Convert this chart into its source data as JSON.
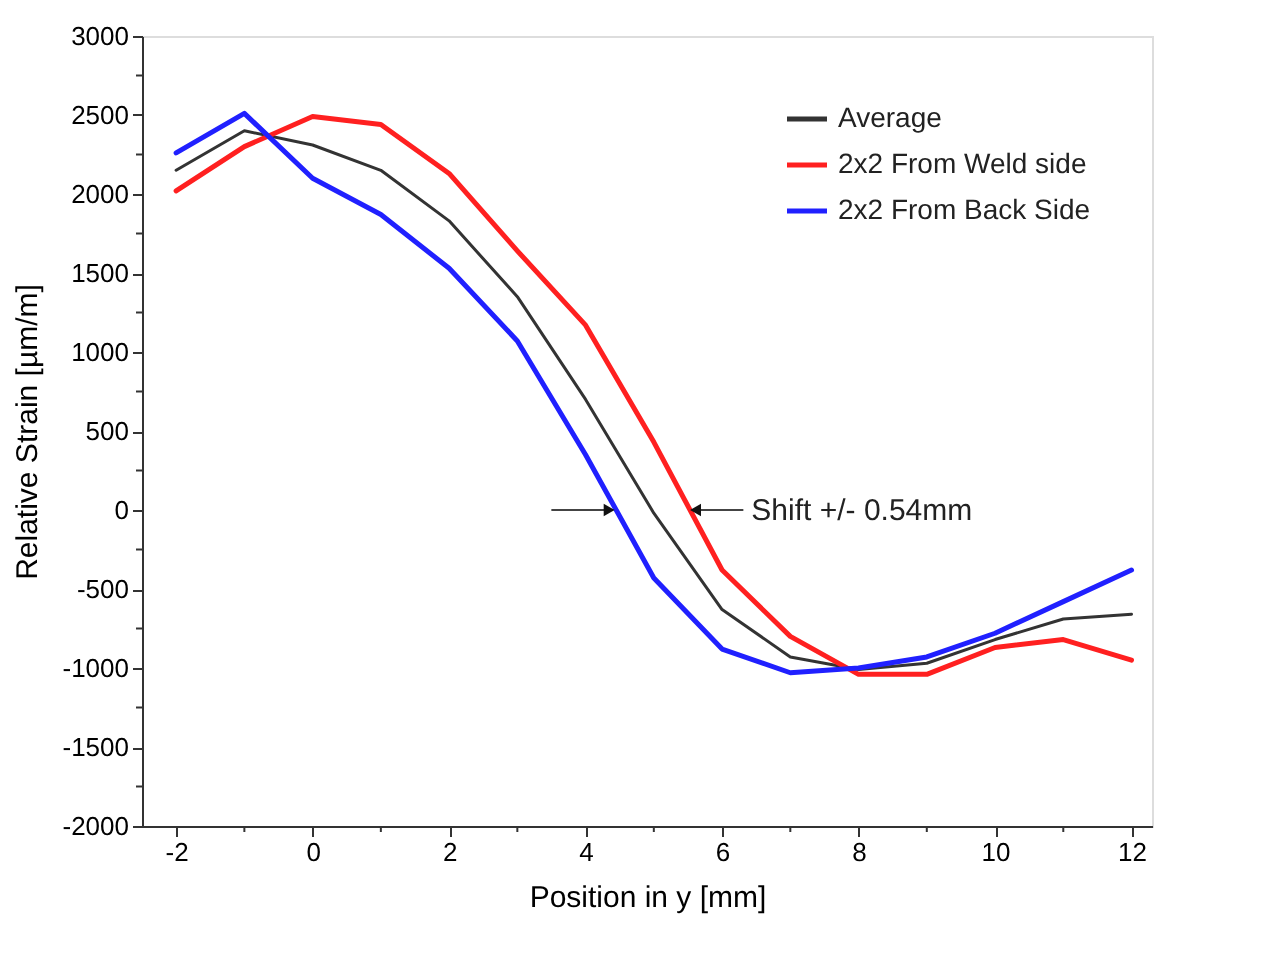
{
  "chart_data": {
    "type": "line",
    "xlabel": "Position in y [mm]",
    "ylabel": "Relative Strain [µm/m]",
    "x": [
      -2,
      -1,
      0,
      1,
      2,
      3,
      4,
      5,
      6,
      7,
      8,
      9,
      10,
      11,
      12
    ],
    "series": [
      {
        "name": "Average",
        "color": "#333333",
        "values": [
          2150,
          2400,
          2310,
          2150,
          1830,
          1350,
          700,
          -20,
          -630,
          -930,
          -1010,
          -970,
          -820,
          -690,
          -660
        ]
      },
      {
        "name": "2x2 From Weld side",
        "color": "#ff2020",
        "values": [
          2020,
          2300,
          2490,
          2440,
          2130,
          1640,
          1170,
          430,
          -380,
          -800,
          -1040,
          -1040,
          -870,
          -820,
          -950
        ]
      },
      {
        "name": "2x2 From Back Side",
        "color": "#2020ff",
        "values": [
          2260,
          2510,
          2100,
          1870,
          1530,
          1070,
          350,
          -430,
          -880,
          -1030,
          -1000,
          -930,
          -780,
          -580,
          -380
        ]
      }
    ],
    "xlim": [
      -2.5,
      12.3
    ],
    "ylim": [
      -2000,
      3000
    ],
    "xticks": [
      -2,
      {
        "value": -1,
        "label": null
      },
      0,
      {
        "value": 1,
        "label": null
      },
      2,
      {
        "value": 3,
        "label": null
      },
      4,
      {
        "value": 5,
        "label": null
      },
      6,
      {
        "value": 7,
        "label": null
      },
      8,
      {
        "value": 9,
        "label": null
      },
      10,
      {
        "value": 11,
        "label": null
      },
      12
    ],
    "yticks": [
      -2000,
      {
        "value": -1750,
        "label": null
      },
      -1500,
      {
        "value": -1250,
        "label": null
      },
      -1000,
      {
        "value": -750,
        "label": null
      },
      -500,
      {
        "value": -250,
        "label": null
      },
      0,
      {
        "value": 250,
        "label": null
      },
      500,
      {
        "value": 750,
        "label": null
      },
      1000,
      {
        "value": 1250,
        "label": null
      },
      1500,
      {
        "value": 1750,
        "label": null
      },
      2000,
      {
        "value": 2250,
        "label": null
      },
      2500,
      {
        "value": 2750,
        "label": null
      },
      3000
    ],
    "annotations": [
      {
        "text": "Shift +/- 0.54mm",
        "x": 5.55,
        "y": 0
      }
    ],
    "grid": false,
    "legend": "top right",
    "marker": "none",
    "line_style": "solid"
  }
}
